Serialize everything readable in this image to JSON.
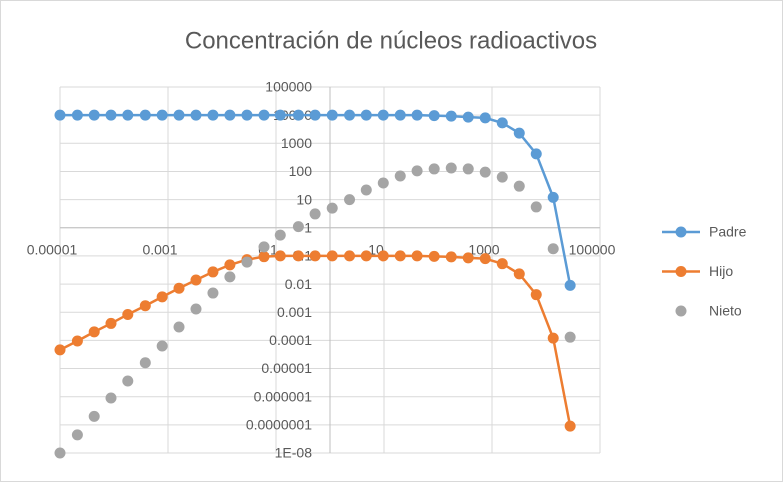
{
  "chart_data": {
    "type": "scatter",
    "title": "Concentración de núcleos radioactivos",
    "log_x": true,
    "log_y": true,
    "grid": true,
    "legend": "right",
    "xlim": [
      1e-05,
      100000
    ],
    "xticks": [
      1e-05,
      0.001,
      0.1,
      10,
      1000,
      100000
    ],
    "ylim": [
      {
        "value": 1e-08,
        "label": "1E-08"
      },
      100000
    ],
    "yticks": [
      100000,
      10000,
      1000,
      100,
      10,
      1,
      0.1,
      0.01,
      0.001,
      0.0001,
      1e-05,
      1e-06,
      {
        "value": 1e-07,
        "label": "0.0000001"
      },
      {
        "value": 1e-08,
        "label": "1E-08"
      }
    ],
    "x": [
      1e-05,
      2.1e-05,
      4.3e-05,
      8.8e-05,
      0.00018,
      0.00038,
      0.00078,
      0.0016,
      0.0033,
      0.0068,
      0.014,
      0.029,
      0.06,
      0.12,
      0.26,
      0.53,
      1.1,
      2.3,
      4.7,
      9.7,
      20,
      41,
      85,
      176,
      363,
      750,
      1550,
      3200,
      6600,
      13600,
      28000
    ],
    "series": [
      {
        "name": "Padre",
        "color": "#5b9bd5",
        "line": true,
        "values": [
          10000,
          10000,
          10000,
          10000,
          10000,
          10000,
          10000,
          10000,
          10000,
          10000,
          10000,
          10000,
          10000,
          10000,
          10000,
          10000,
          10000,
          10000,
          10000,
          10000,
          10000,
          10000,
          9600,
          9250,
          8500,
          8000,
          5300,
          2300,
          420,
          12,
          0.009
        ]
      },
      {
        "name": "Hijo",
        "color": "#ed7d31",
        "line": true,
        "values": [
          4.6e-05,
          9.5e-05,
          0.0002,
          0.0004,
          0.00083,
          0.0017,
          0.0035,
          0.0071,
          0.014,
          0.027,
          0.048,
          0.074,
          0.094,
          0.1,
          0.1,
          0.1,
          0.1,
          0.1,
          0.1,
          0.1,
          0.1,
          0.1,
          0.096,
          0.0925,
          0.085,
          0.08,
          0.053,
          0.023,
          0.0042,
          0.00012,
          9e-08
        ]
      },
      {
        "name": "Nieto",
        "color": "#a5a5a5",
        "line": false,
        "values": [
          1e-08,
          4.4e-08,
          2e-07,
          9e-07,
          3.6e-06,
          1.6e-05,
          6.3e-05,
          0.0003,
          0.0013,
          0.0048,
          0.018,
          0.06,
          0.21,
          0.55,
          1.1,
          3.1,
          5,
          10,
          22,
          39,
          69,
          105,
          123,
          133,
          123,
          95,
          63,
          30,
          5.5,
          0.18,
          0.00013
        ]
      }
    ]
  }
}
